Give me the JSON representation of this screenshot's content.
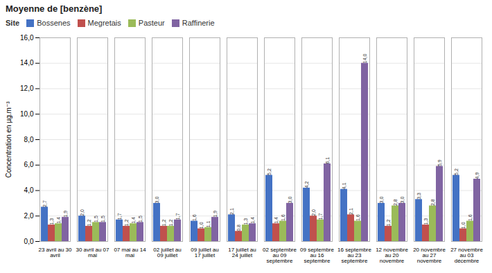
{
  "chart_data": {
    "type": "bar",
    "title": "Moyenne de [benzène]",
    "ylabel": "Concentration en µg.m⁻³",
    "categories": [
      "23 avril au 30\navril",
      "30 avril au 07\nmai",
      "07 mai au 14\nmai",
      "02 juillet au\n09 juillet",
      "09 juillet au\n17 juillet",
      "17 juillet au\n24 juillet",
      "02 septembre\nau 09\nseptembre",
      "09 septembre\nau 16\nseptembre",
      "16 septembre\nau 23\nseptembre",
      "12 novembre\nau 20\nnovembre",
      "20 novembre\nau 27\nnovembre",
      "27 novembre\nau 03\ndécembre"
    ],
    "series": [
      {
        "name": "Bossenes",
        "color": "#4472C4",
        "values": [
          2.7,
          2.0,
          1.7,
          3.0,
          1.6,
          2.1,
          5.2,
          4.2,
          4.1,
          3.0,
          3.3,
          5.2
        ],
        "value_labels": [
          "2,7",
          "2,0",
          "1,7",
          "3,0",
          "1,6",
          "2,1",
          "5,2",
          "4,2",
          "4,1",
          "3,0",
          "3,3",
          "5,2"
        ]
      },
      {
        "name": "Megretais",
        "color": "#C0504D",
        "values": [
          1.3,
          1.2,
          1.2,
          1.2,
          1.0,
          0.8,
          1.4,
          2.0,
          2.1,
          1.2,
          1.3,
          1.0
        ],
        "value_labels": [
          "1,3",
          "1,2",
          "1,2",
          "1,2",
          "1,0",
          "0,8",
          "1,4",
          "2,0",
          "2,1",
          "1,2",
          "1,3",
          "1,0"
        ]
      },
      {
        "name": "Pasteur",
        "color": "#9BBB59",
        "values": [
          1.4,
          1.5,
          1.4,
          1.2,
          1.1,
          1.3,
          1.6,
          1.7,
          1.6,
          2.8,
          2.8,
          1.6
        ],
        "value_labels": [
          "1,4",
          "1,5",
          "1,4",
          "1,2",
          "1,1",
          "1,3",
          "1,6",
          "1,7",
          "1,6",
          "2,8",
          "2,8",
          "1,6"
        ]
      },
      {
        "name": "Raffinerie",
        "color": "#8064A2",
        "values": [
          1.9,
          1.5,
          1.5,
          1.7,
          1.9,
          1.4,
          3.0,
          6.1,
          14.0,
          3.0,
          5.9,
          4.9
        ],
        "value_labels": [
          "1,9",
          "1,5",
          "1,5",
          "1,7",
          "1,9",
          "1,4",
          "3,0",
          "6,1",
          "14,0",
          "3,0",
          "5,9",
          "4,9"
        ]
      }
    ],
    "ylim": [
      0,
      16.0
    ],
    "yticks": [
      {
        "value": 0.0,
        "label": "0,0"
      },
      {
        "value": 2.0,
        "label": "2,0"
      },
      {
        "value": 4.0,
        "label": "4,0"
      },
      {
        "value": 6.0,
        "label": "6,0"
      },
      {
        "value": 8.0,
        "label": "8,0"
      },
      {
        "value": 10.0,
        "label": "10,0"
      },
      {
        "value": 12.0,
        "label": "12,0"
      },
      {
        "value": 14.0,
        "label": "14,0"
      },
      {
        "value": 16.0,
        "label": "16,0"
      }
    ],
    "grid": true,
    "legend": "top",
    "legend_title": "Site",
    "data_labels": true
  }
}
